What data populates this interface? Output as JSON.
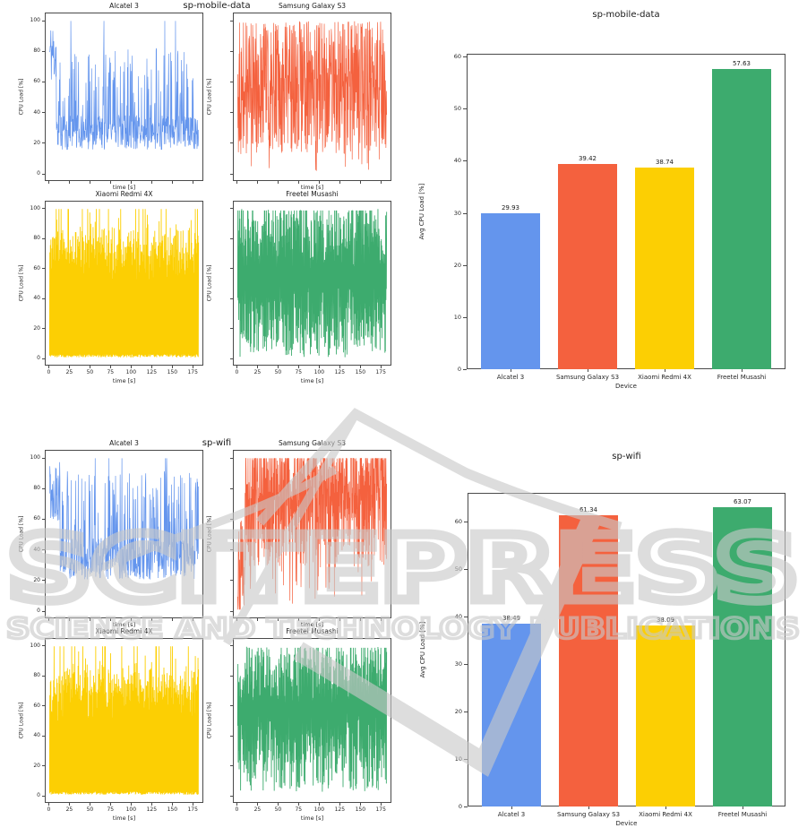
{
  "watermark": {
    "brand": "SCITEPRESS",
    "tagline": "SCIENCE AND TECHNOLOGY PUBLICATIONS",
    "color": "#c9c9c9"
  },
  "chart_data": [
    {
      "id": "sp-mobile-data-lines",
      "type": "line",
      "suptitle": "sp-mobile-data",
      "xlabel": "time [s]",
      "ylabel": "CPU Load [%]",
      "xlim": [
        0,
        185
      ],
      "ylim": [
        0,
        100
      ],
      "x_ticks": [
        0,
        25,
        50,
        75,
        100,
        125,
        150,
        175
      ],
      "y_ticks": [
        0,
        20,
        40,
        60,
        80,
        100
      ],
      "grid": false,
      "series": [
        {
          "name": "Alcatel 3",
          "color": "#6495ed",
          "approx_mean": 29.93,
          "points": 500,
          "seed": 11,
          "pattern": {
            "kind": "baseline-spikes",
            "start_high": 0.045,
            "base": [
              15,
              38
            ],
            "spike": [
              44,
              83
            ],
            "spike_prob": 0.17,
            "peak_prob": 0.006
          }
        },
        {
          "name": "Samsung Galaxy S3",
          "color": "#f4613e",
          "approx_mean": 39.42,
          "points": 620,
          "seed": 22,
          "pattern": {
            "kind": "dense-noise",
            "base": [
              12,
              97
            ]
          }
        },
        {
          "name": "Xiaomi Redmi 4X",
          "color": "#fccf03",
          "approx_mean": 38.74,
          "points": 560,
          "seed": 33,
          "pattern": {
            "kind": "fill-tops",
            "top_mean": 73,
            "top_spread": 18,
            "top_min": 52
          }
        },
        {
          "name": "Freetel Musashi",
          "color": "#3dab6e",
          "approx_mean": 57.63,
          "points": 620,
          "seed": 44,
          "pattern": {
            "kind": "fill-band",
            "lo": [
              0,
              48
            ],
            "hi": [
              60,
              100
            ]
          }
        }
      ]
    },
    {
      "id": "sp-mobile-data-avg",
      "type": "bar",
      "title": "sp-mobile-data",
      "xlabel": "Device",
      "ylabel": "Avg CPU Load [%]",
      "categories": [
        "Alcatel 3",
        "Samsung Galaxy S3",
        "Xiaomi Redmi 4X",
        "Freetel Musashi"
      ],
      "values": [
        29.93,
        39.42,
        38.74,
        57.63
      ],
      "colors": [
        "#6495ed",
        "#f4613e",
        "#fccf03",
        "#3dab6e"
      ],
      "y_ticks": [
        0,
        10,
        20,
        30,
        40,
        50,
        60
      ],
      "ylim": [
        0,
        60.5
      ],
      "legend": "none"
    },
    {
      "id": "sp-wifi-lines",
      "type": "line",
      "suptitle": "sp-wifi",
      "xlabel": "time [s]",
      "ylabel": "CPU Load [%]",
      "xlim": [
        0,
        185
      ],
      "ylim": [
        0,
        100
      ],
      "x_ticks": [
        0,
        25,
        50,
        75,
        100,
        125,
        150,
        175
      ],
      "y_ticks": [
        0,
        20,
        40,
        60,
        80,
        100
      ],
      "grid": false,
      "series": [
        {
          "name": "Alcatel 3",
          "color": "#6495ed",
          "approx_mean": 38.49,
          "points": 520,
          "seed": 55,
          "pattern": {
            "kind": "baseline-spikes",
            "start_high": 0.07,
            "base": [
              20,
              48
            ],
            "spike": [
              52,
              92
            ],
            "spike_prob": 0.2,
            "peak_prob": 0.01
          }
        },
        {
          "name": "Samsung Galaxy S3",
          "color": "#f4613e",
          "approx_mean": 61.34,
          "points": 620,
          "seed": 66,
          "pattern": {
            "kind": "dense-high",
            "warmup": 0.05,
            "lo": [
              28,
              70
            ],
            "hi": [
              72,
              100
            ],
            "top_prob": 0.2,
            "dip_prob": 0.03
          }
        },
        {
          "name": "Xiaomi Redmi 4X",
          "color": "#fccf03",
          "approx_mean": 38.09,
          "points": 560,
          "seed": 77,
          "pattern": {
            "kind": "fill-tops",
            "top_mean": 72,
            "top_spread": 18,
            "top_min": 50
          }
        },
        {
          "name": "Freetel Musashi",
          "color": "#3dab6e",
          "approx_mean": 63.07,
          "points": 620,
          "seed": 88,
          "pattern": {
            "kind": "fill-band",
            "lo": [
              2,
              55
            ],
            "hi": [
              62,
              100
            ]
          }
        }
      ]
    },
    {
      "id": "sp-wifi-avg",
      "type": "bar",
      "title": "sp-wifi",
      "xlabel": "Device",
      "ylabel": "Avg CPU Load [%]",
      "categories": [
        "Alcatel 3",
        "Samsung Galaxy S3",
        "Xiaomi Redmi 4X",
        "Freetel Musashi"
      ],
      "values": [
        38.49,
        61.34,
        38.09,
        63.07
      ],
      "colors": [
        "#6495ed",
        "#f4613e",
        "#fccf03",
        "#3dab6e"
      ],
      "y_ticks": [
        0,
        10,
        20,
        30,
        40,
        50,
        60
      ],
      "ylim": [
        0,
        66
      ],
      "legend": "none"
    }
  ]
}
